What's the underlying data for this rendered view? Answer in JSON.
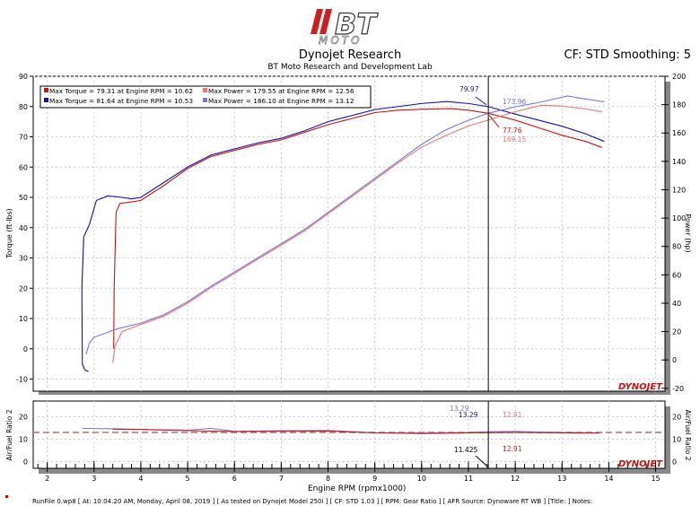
{
  "logo": {
    "text": "BT MOTO"
  },
  "header": {
    "title": "Dynojet Research",
    "subtitle": "BT Moto Research and Development Lab",
    "cf_info": "CF: STD Smoothing: 5"
  },
  "watermark": "DYNOJET",
  "footer": "RunFile  0.wp8 [ At: 10:04:20 AM, Monday, April 08, 2019 ] [ As tested on Dynojet Model 250i ] [ CF: STD 1.03 ] [ RPM: Gear Ratio ] [ AFR Source: Dynoware RT WB ] [Title: ]  Notes:",
  "chart_data": [
    {
      "type": "line",
      "xlabel": "Engine RPM (rpmx1000)",
      "ylabel": "Torque (ft-lbs)",
      "y2label": "Power (hp)",
      "xlim": [
        1.7,
        15.2
      ],
      "ylim": [
        -14,
        90
      ],
      "y2lim": [
        -22,
        200
      ],
      "xticks": [
        2,
        3,
        4,
        5,
        6,
        7,
        8,
        9,
        10,
        11,
        12,
        13,
        14,
        15
      ],
      "yticks": [
        -10,
        0,
        10,
        20,
        30,
        40,
        50,
        60,
        70,
        80,
        90
      ],
      "y2ticks": [
        -20,
        0,
        20,
        40,
        60,
        80,
        100,
        120,
        140,
        160,
        180,
        200
      ],
      "grid": true,
      "legend_position": "top-left",
      "legend": [
        {
          "text": "Max Torque = 79.31 at Engine RPM = 10.62",
          "color": "#cc1111"
        },
        {
          "text": "Max Power = 179.55 at Engine RPM = 12.56",
          "color": "#e87878"
        },
        {
          "text": "Max Torque = 81.64 at Engine RPM = 10.53",
          "color": "#1111aa"
        },
        {
          "text": "Max Power = 186.10 at Engine RPM = 13.12",
          "color": "#7777dd"
        }
      ],
      "cursor_rpm": 11.425,
      "annotations": [
        {
          "text": "79.97",
          "color": "#1111aa"
        },
        {
          "text": "173.96",
          "color": "#7777dd"
        },
        {
          "text": "77.76",
          "color": "#cc1111"
        },
        {
          "text": "169.15",
          "color": "#e87878"
        }
      ],
      "series": [
        {
          "axis": "left",
          "color": "#1111aa",
          "x": [
            2.88,
            2.8,
            2.75,
            2.74,
            2.78,
            2.9,
            3.05,
            3.3,
            3.6,
            3.8,
            4.0,
            4.5,
            5.0,
            5.5,
            6.0,
            6.5,
            7.0,
            7.5,
            8.0,
            8.5,
            9.0,
            9.5,
            10.0,
            10.53,
            11.0,
            11.425,
            12.0,
            12.5,
            13.0,
            13.5,
            13.9
          ],
          "y": [
            -7.5,
            -7,
            -5,
            20,
            37,
            41,
            49,
            50.5,
            50,
            49.5,
            50,
            55,
            60,
            64,
            66,
            68,
            69.5,
            72,
            75,
            77,
            79,
            80,
            81,
            81.64,
            81,
            79.97,
            77.5,
            75.5,
            73.5,
            71,
            68.5
          ]
        },
        {
          "axis": "left",
          "color": "#cc1111",
          "x": [
            3.42,
            3.43,
            3.47,
            3.55,
            3.8,
            4.0,
            4.5,
            5.0,
            5.5,
            6.0,
            6.5,
            7.0,
            7.5,
            8.0,
            8.5,
            9.0,
            9.5,
            10.0,
            10.62,
            11.0,
            11.425,
            12.0,
            12.5,
            13.0,
            13.5,
            13.85
          ],
          "y": [
            0,
            20,
            45,
            48,
            48.5,
            49,
            54,
            59.5,
            63.5,
            65.5,
            67.5,
            69,
            71.5,
            74,
            76,
            78,
            78.8,
            79.1,
            79.31,
            78.8,
            77.76,
            75.5,
            73,
            70.5,
            68.5,
            66.5
          ]
        },
        {
          "axis": "right",
          "color": "#7777dd",
          "x": [
            2.83,
            2.9,
            3.0,
            3.5,
            4.0,
            4.5,
            5.0,
            5.5,
            6.0,
            6.5,
            7.0,
            7.5,
            8.0,
            8.5,
            9.0,
            9.5,
            10.0,
            10.5,
            11.0,
            11.425,
            12.0,
            12.5,
            13.12,
            13.5,
            13.9
          ],
          "y": [
            4,
            12,
            16,
            22,
            26,
            32,
            41,
            52,
            62,
            72,
            82,
            92,
            104,
            116,
            128,
            140,
            152,
            162,
            169,
            173.96,
            178.5,
            181.5,
            186.1,
            184,
            182
          ]
        },
        {
          "axis": "right",
          "color": "#e87878",
          "x": [
            3.4,
            3.45,
            3.6,
            4.0,
            4.5,
            5.0,
            5.5,
            6.0,
            6.5,
            7.0,
            7.5,
            8.0,
            8.5,
            9.0,
            9.5,
            10.0,
            10.5,
            11.0,
            11.425,
            12.0,
            12.56,
            13.0,
            13.5,
            13.85
          ],
          "y": [
            -2,
            10,
            20,
            25,
            31,
            40,
            51,
            61,
            71,
            81,
            91,
            103,
            115,
            127,
            139,
            150,
            158,
            165,
            169.15,
            175,
            179.55,
            179,
            177,
            175
          ]
        }
      ]
    },
    {
      "type": "line",
      "ylabel": "Air/Fuel Ratio 2",
      "y2label": "Air/Fuel Ratio 2",
      "xlim": [
        1.7,
        15.2
      ],
      "ylim": [
        -3,
        27
      ],
      "yticks": [
        0,
        10,
        20
      ],
      "reference_line": 13,
      "cursor_rpm": 11.425,
      "cursor_label": "11.425",
      "annotations": [
        {
          "text": "13.29",
          "color": "#7777dd"
        },
        {
          "text": "13.29",
          "color": "#1111aa"
        },
        {
          "text": "12.91",
          "color": "#e87878"
        },
        {
          "text": "12.91",
          "color": "#cc1111"
        }
      ],
      "series": [
        {
          "color": "#7777dd",
          "x": [
            2.75,
            3.5,
            4.5,
            5.0,
            5.5,
            6.0,
            7.0,
            8.0,
            9.0,
            10.0,
            11.0,
            11.425,
            12.0,
            12.5,
            13.0,
            13.8
          ],
          "y": [
            14.8,
            14.6,
            14.2,
            14.0,
            14.8,
            13.5,
            13.8,
            13.9,
            12.8,
            12.8,
            13.0,
            13.29,
            13.5,
            13.2,
            13.0,
            12.8
          ]
        },
        {
          "color": "#cc1111",
          "x": [
            3.4,
            4.0,
            5.0,
            6.0,
            7.0,
            8.0,
            9.0,
            10.0,
            11.0,
            11.425,
            12.0,
            12.5,
            13.0,
            13.8
          ],
          "y": [
            14.5,
            14.3,
            13.8,
            13.4,
            13.5,
            13.6,
            12.8,
            12.5,
            12.8,
            12.91,
            13.0,
            12.9,
            12.8,
            12.7
          ]
        }
      ]
    }
  ]
}
